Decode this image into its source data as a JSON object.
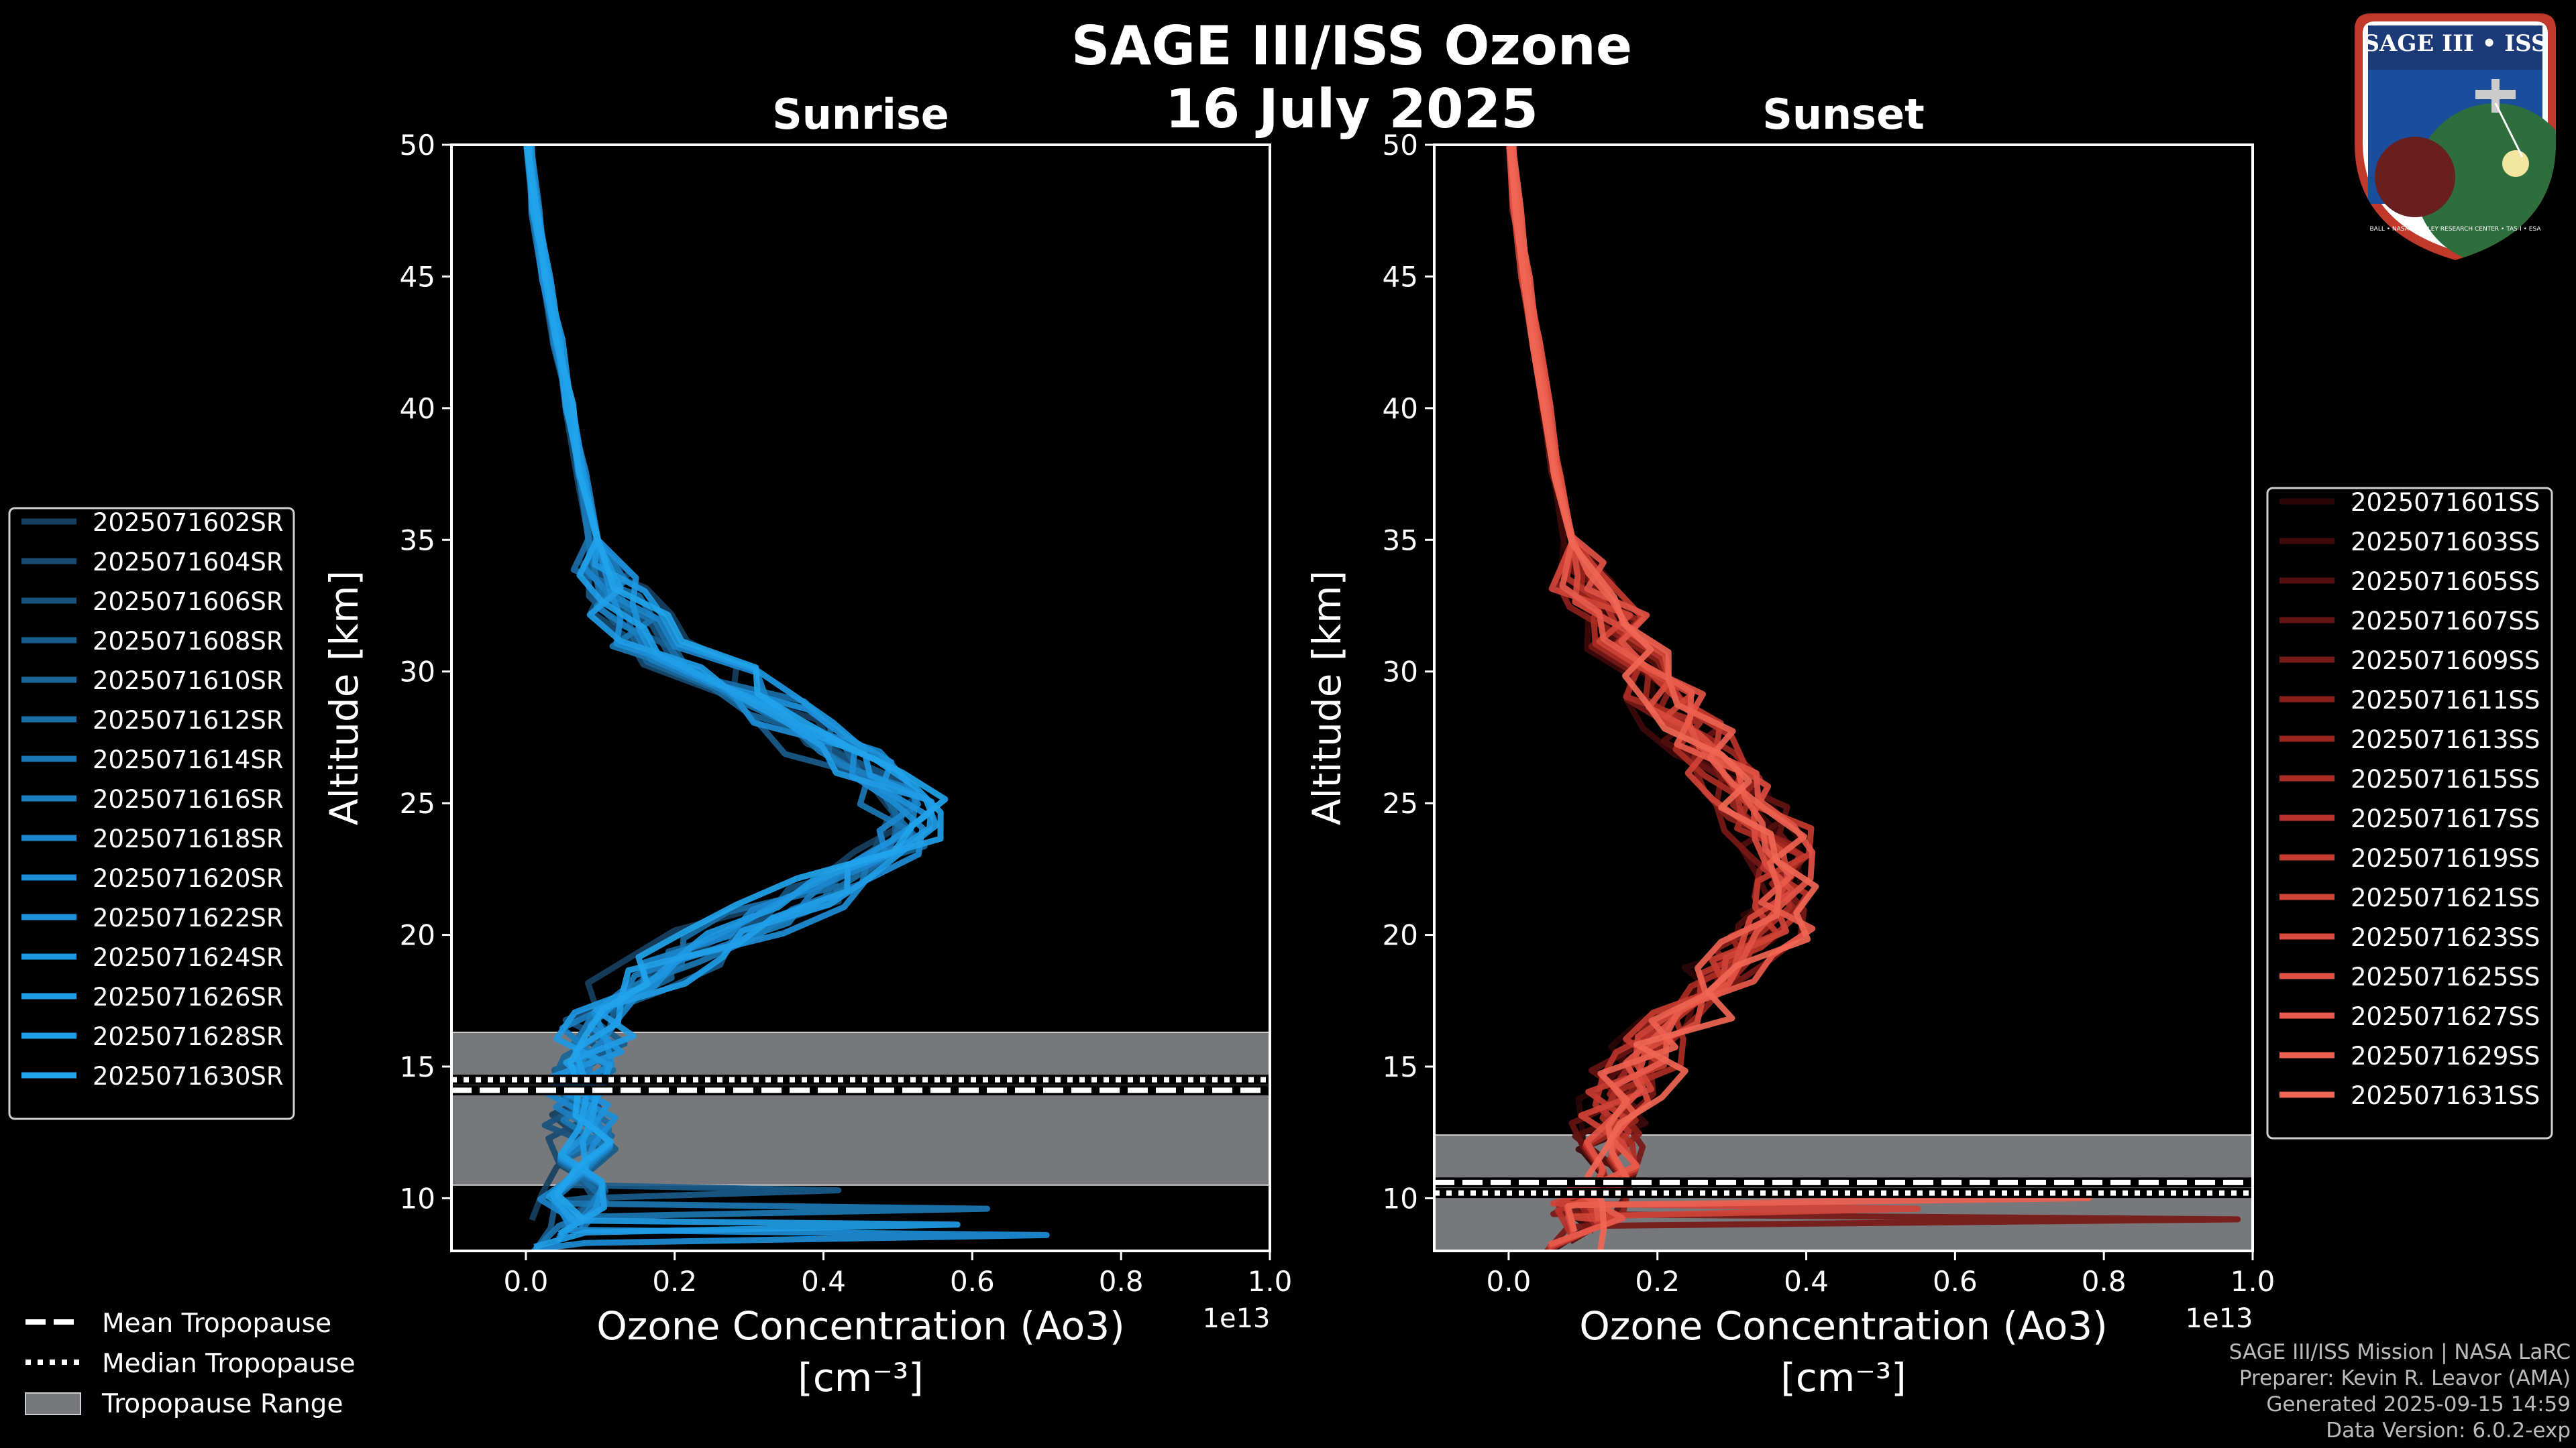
{
  "title": {
    "line1": "SAGE III/ISS Ozone",
    "line2": "16 July 2025"
  },
  "footer": {
    "line1": "SAGE III/ISS Mission | NASA LaRC",
    "line2": "Preparer: Kevin R. Leavor (AMA)",
    "line3": "Generated 2025-09-15 14:59",
    "line4": "Data Version: 6.0.2-exp"
  },
  "logo": {
    "text": "SAGE III • ISS",
    "ring_text": "BALL • NASA LANGLEY RESEARCH CENTER • TAS-I • ESA"
  },
  "colors": {
    "background": "#000000",
    "sunrise": "#1f8fd6",
    "sunset": "#ef5a48",
    "tropopause_fill": "#77787b"
  },
  "chart_data": [
    {
      "type": "line",
      "title": "Sunrise",
      "xlabel": "Ozone Concentration (Ao3)",
      "xunits": "[cm⁻³]",
      "x_offset_label": "1e13",
      "ylabel": "Altitude [km]",
      "xlim": [
        -0.1,
        1.0
      ],
      "ylim": [
        8,
        50
      ],
      "xticks": [
        "0.0",
        "0.2",
        "0.4",
        "0.6",
        "0.8",
        "1.0"
      ],
      "yticks": [
        "10",
        "15",
        "20",
        "25",
        "30",
        "35",
        "40",
        "45",
        "50"
      ],
      "altitudes": [
        8.5,
        9.5,
        10.5,
        11.5,
        12.5,
        13.5,
        14.5,
        15.5,
        16.5,
        17.5,
        18.5,
        19.5,
        20.5,
        21.5,
        22.5,
        23.5,
        24.5,
        25.5,
        26.5,
        27.5,
        28.5,
        29.5,
        30.5,
        31.5,
        32.5,
        33.5,
        35,
        37.5,
        40,
        42.5,
        45,
        47.5,
        50
      ],
      "base_profile": [
        0.05,
        0.06,
        0.07,
        0.07,
        0.07,
        0.07,
        0.07,
        0.08,
        0.09,
        0.12,
        0.16,
        0.22,
        0.29,
        0.36,
        0.42,
        0.47,
        0.48,
        0.46,
        0.42,
        0.37,
        0.31,
        0.25,
        0.19,
        0.15,
        0.12,
        0.1,
        0.085,
        0.07,
        0.055,
        0.04,
        0.025,
        0.012,
        0.0
      ],
      "tropopause": {
        "mean": 14.1,
        "median": 14.5,
        "range": [
          10.5,
          16.3
        ]
      },
      "legend_position": "outside-left",
      "series_names": [
        "2025071602SR",
        "2025071604SR",
        "2025071606SR",
        "2025071608SR",
        "2025071610SR",
        "2025071612SR",
        "2025071614SR",
        "2025071616SR",
        "2025071618SR",
        "2025071620SR",
        "2025071622SR",
        "2025071624SR",
        "2025071626SR",
        "2025071628SR",
        "2025071630SR"
      ],
      "series_colors": [
        "#17405f",
        "#184a6f",
        "#18537d",
        "#195c8b",
        "#196598",
        "#1a6ea6",
        "#1a77b3",
        "#1b7fc0",
        "#1b86cc",
        "#1c8dd6",
        "#1d93dd",
        "#1e98e2",
        "#1f9ce6",
        "#20a0e9",
        "#21a4ec"
      ],
      "spikes": [
        {
          "series": 3,
          "alt": 10.3,
          "x": 0.42
        },
        {
          "series": 6,
          "alt": 9.6,
          "x": 0.62
        },
        {
          "series": 9,
          "alt": 8.6,
          "x": 0.7
        },
        {
          "series": 12,
          "alt": 9.0,
          "x": 0.58
        }
      ]
    },
    {
      "type": "line",
      "title": "Sunset",
      "xlabel": "Ozone Concentration (Ao3)",
      "xunits": "[cm⁻³]",
      "x_offset_label": "1e13",
      "ylabel": "Altitude [km]",
      "xlim": [
        -0.1,
        1.0
      ],
      "ylim": [
        8,
        50
      ],
      "xticks": [
        "0.0",
        "0.2",
        "0.4",
        "0.6",
        "0.8",
        "1.0"
      ],
      "yticks": [
        "10",
        "15",
        "20",
        "25",
        "30",
        "35",
        "40",
        "45",
        "50"
      ],
      "altitudes": [
        8.5,
        9.5,
        10.5,
        11.5,
        12.5,
        13.5,
        14.5,
        15.5,
        16.5,
        17.5,
        18.5,
        19.5,
        20.5,
        21.5,
        22.5,
        23.5,
        24.5,
        25.5,
        26.5,
        27.5,
        28.5,
        29.5,
        30.5,
        31.5,
        32.5,
        33.5,
        35,
        37.5,
        40,
        42.5,
        45,
        47.5,
        50
      ],
      "base_profile": [
        0.1,
        0.12,
        0.13,
        0.14,
        0.15,
        0.16,
        0.18,
        0.2,
        0.23,
        0.27,
        0.31,
        0.35,
        0.39,
        0.41,
        0.42,
        0.4,
        0.37,
        0.34,
        0.31,
        0.28,
        0.25,
        0.22,
        0.19,
        0.16,
        0.13,
        0.11,
        0.09,
        0.07,
        0.055,
        0.04,
        0.025,
        0.012,
        0.0
      ],
      "tropopause": {
        "mean": 10.6,
        "median": 10.2,
        "range": [
          8.0,
          12.4
        ]
      },
      "legend_position": "outside-right",
      "series_names": [
        "2025071601SS",
        "2025071603SS",
        "2025071605SS",
        "2025071607SS",
        "2025071609SS",
        "2025071611SS",
        "2025071613SS",
        "2025071615SS",
        "2025071617SS",
        "2025071619SS",
        "2025071621SS",
        "2025071623SS",
        "2025071625SS",
        "2025071627SS",
        "2025071629SS",
        "2025071631SS"
      ],
      "series_colors": [
        "#2b0606",
        "#3e0a0a",
        "#520f0e",
        "#651412",
        "#781916",
        "#8a1f1a",
        "#9a251e",
        "#aa2c24",
        "#b8332a",
        "#c53b30",
        "#d04337",
        "#da4b3e",
        "#e25345",
        "#e85a4b",
        "#ed6150",
        "#f06654"
      ],
      "spikes": [
        {
          "series": 4,
          "alt": 9.2,
          "x": 0.98
        },
        {
          "series": 14,
          "alt": 10.0,
          "x": 0.78
        },
        {
          "series": 10,
          "alt": 9.6,
          "x": 0.55
        }
      ]
    }
  ],
  "tropopause_legend": {
    "mean": "Mean Tropopause",
    "median": "Median Tropopause",
    "range": "Tropopause Range"
  }
}
